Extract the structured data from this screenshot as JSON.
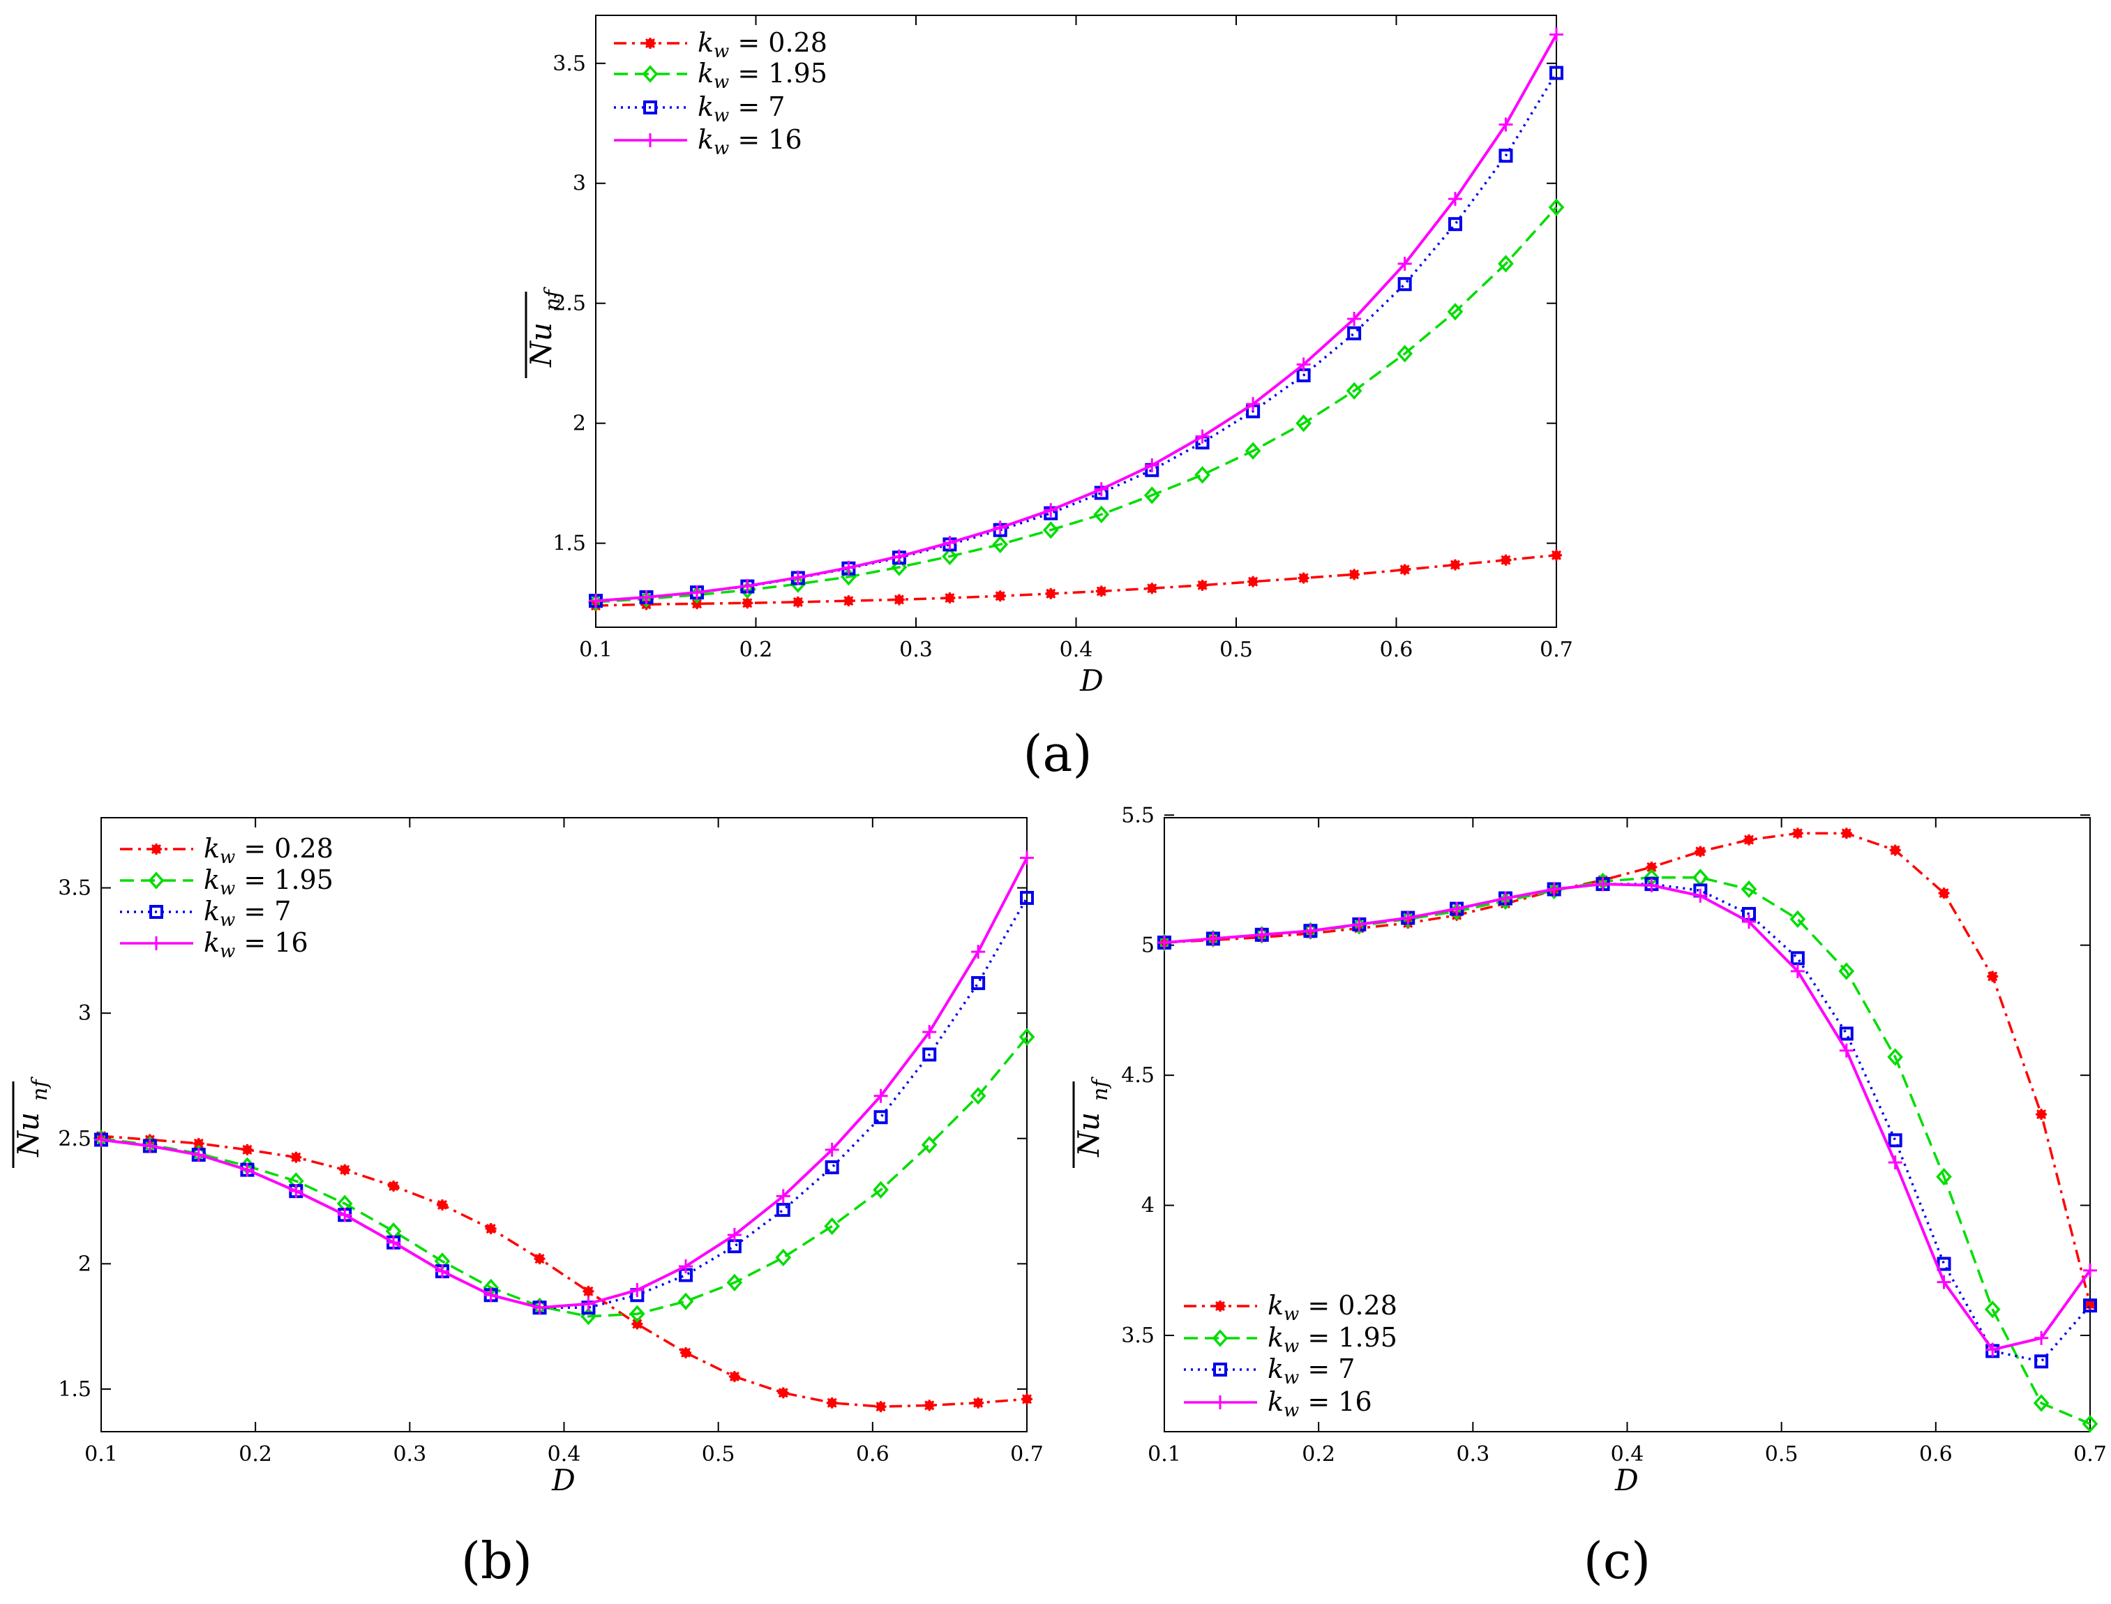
{
  "chart_data": [
    {
      "type": "line",
      "panel": "a",
      "caption": "(a)",
      "xlabel": "D",
      "ylabel": "Nu_nf",
      "xlim": [
        0.1,
        0.7
      ],
      "ylim": [
        1.15,
        3.7
      ],
      "xticks": [
        "0.1",
        "0.2",
        "0.3",
        "0.4",
        "0.5",
        "0.6",
        "0.7"
      ],
      "xtick_values": [
        0.1,
        0.2,
        0.3,
        0.4,
        0.5,
        0.6,
        0.7
      ],
      "yticks": [
        "1.5",
        "2",
        "2.5",
        "3",
        "3.5"
      ],
      "ytick_values": [
        1.5,
        2,
        2.5,
        3,
        3.5
      ],
      "legend_loc": "top-left",
      "x": [
        0.1,
        0.1316,
        0.1632,
        0.1947,
        0.2263,
        0.2579,
        0.2895,
        0.3211,
        0.3526,
        0.3842,
        0.4158,
        0.4474,
        0.4789,
        0.5105,
        0.5421,
        0.5737,
        0.6053,
        0.6368,
        0.6684,
        0.7
      ],
      "series": [
        {
          "name": "k_w = 0.28",
          "key": "red",
          "color": "#ff0000",
          "marker": "star",
          "dash": "18,8,4,8",
          "values": [
            1.24,
            1.245,
            1.248,
            1.251,
            1.255,
            1.26,
            1.265,
            1.272,
            1.28,
            1.29,
            1.3,
            1.312,
            1.325,
            1.34,
            1.355,
            1.37,
            1.39,
            1.41,
            1.43,
            1.45
          ]
        },
        {
          "name": "k_w = 1.95",
          "key": "green",
          "color": "#00dd00",
          "marker": "diamond",
          "dash": "20,10",
          "values": [
            1.255,
            1.268,
            1.285,
            1.305,
            1.33,
            1.36,
            1.4,
            1.445,
            1.495,
            1.555,
            1.62,
            1.7,
            1.785,
            1.885,
            2.0,
            2.135,
            2.29,
            2.465,
            2.665,
            2.9
          ]
        },
        {
          "name": "k_w = 7",
          "key": "blue",
          "color": "#0000ee",
          "marker": "square",
          "dash": "3,7",
          "values": [
            1.26,
            1.275,
            1.295,
            1.32,
            1.355,
            1.395,
            1.44,
            1.495,
            1.555,
            1.625,
            1.71,
            1.805,
            1.92,
            2.05,
            2.2,
            2.375,
            2.58,
            2.83,
            3.115,
            3.46
          ]
        },
        {
          "name": "k_w = 16",
          "key": "magenta",
          "color": "#ff00ff",
          "marker": "plus",
          "dash": "",
          "values": [
            1.26,
            1.275,
            1.295,
            1.322,
            1.357,
            1.398,
            1.445,
            1.502,
            1.565,
            1.638,
            1.725,
            1.825,
            1.945,
            2.08,
            2.245,
            2.435,
            2.665,
            2.935,
            3.245,
            3.62
          ]
        }
      ]
    },
    {
      "type": "line",
      "panel": "b",
      "caption": "(b)",
      "xlabel": "D",
      "ylabel": "Nu_nf",
      "xlim": [
        0.1,
        0.7
      ],
      "ylim": [
        1.33,
        3.78
      ],
      "xticks": [
        "0.1",
        "0.2",
        "0.3",
        "0.4",
        "0.5",
        "0.6",
        "0.7"
      ],
      "xtick_values": [
        0.1,
        0.2,
        0.3,
        0.4,
        0.5,
        0.6,
        0.7
      ],
      "yticks": [
        "1.5",
        "2",
        "2.5",
        "3",
        "3.5"
      ],
      "ytick_values": [
        1.5,
        2,
        2.5,
        3,
        3.5
      ],
      "legend_loc": "top-left",
      "x": [
        0.1,
        0.1316,
        0.1632,
        0.1947,
        0.2263,
        0.2579,
        0.2895,
        0.3211,
        0.3526,
        0.3842,
        0.4158,
        0.4474,
        0.4789,
        0.5105,
        0.5421,
        0.5737,
        0.6053,
        0.6368,
        0.6684,
        0.7
      ],
      "series": [
        {
          "name": "k_w = 0.28",
          "key": "red",
          "color": "#ff0000",
          "marker": "star",
          "dash": "18,8,4,8",
          "values": [
            2.51,
            2.495,
            2.48,
            2.455,
            2.425,
            2.375,
            2.31,
            2.235,
            2.14,
            2.02,
            1.89,
            1.76,
            1.645,
            1.55,
            1.485,
            1.445,
            1.43,
            1.435,
            1.445,
            1.46
          ]
        },
        {
          "name": "k_w = 1.95",
          "key": "green",
          "color": "#00dd00",
          "marker": "diamond",
          "dash": "20,10",
          "values": [
            2.5,
            2.475,
            2.44,
            2.39,
            2.33,
            2.24,
            2.13,
            2.01,
            1.905,
            1.83,
            1.79,
            1.8,
            1.85,
            1.925,
            2.025,
            2.15,
            2.295,
            2.475,
            2.67,
            2.905
          ]
        },
        {
          "name": "k_w = 7",
          "key": "blue",
          "color": "#0000ee",
          "marker": "square",
          "dash": "3,7",
          "values": [
            2.495,
            2.47,
            2.435,
            2.375,
            2.29,
            2.195,
            2.085,
            1.97,
            1.875,
            1.825,
            1.825,
            1.875,
            1.955,
            2.07,
            2.215,
            2.385,
            2.585,
            2.835,
            3.12,
            3.46
          ]
        },
        {
          "name": "k_w = 16",
          "key": "magenta",
          "color": "#ff00ff",
          "marker": "plus",
          "dash": "",
          "values": [
            2.495,
            2.47,
            2.435,
            2.375,
            2.29,
            2.195,
            2.085,
            1.97,
            1.875,
            1.825,
            1.84,
            1.895,
            1.99,
            2.115,
            2.27,
            2.455,
            2.67,
            2.925,
            3.245,
            3.62
          ]
        }
      ]
    },
    {
      "type": "line",
      "panel": "c",
      "caption": "(c)",
      "xlabel": "D",
      "ylabel": "Nu_nf",
      "xlim": [
        0.1,
        0.7
      ],
      "ylim": [
        3.13,
        5.49
      ],
      "xticks": [
        "0.1",
        "0.2",
        "0.3",
        "0.4",
        "0.5",
        "0.6",
        "0.7"
      ],
      "xtick_values": [
        0.1,
        0.2,
        0.3,
        0.4,
        0.5,
        0.6,
        0.7
      ],
      "yticks": [
        "3.5",
        "4",
        "4.5",
        "5",
        "5.5"
      ],
      "ytick_values": [
        3.5,
        4,
        4.5,
        5,
        5.5
      ],
      "legend_loc": "bottom-left",
      "x": [
        0.1,
        0.1316,
        0.1632,
        0.1947,
        0.2263,
        0.2579,
        0.2895,
        0.3211,
        0.3526,
        0.3842,
        0.4158,
        0.4474,
        0.4789,
        0.5105,
        0.5421,
        0.5737,
        0.6053,
        0.6368,
        0.6684,
        0.7
      ],
      "series": [
        {
          "name": "k_w = 0.28",
          "key": "red",
          "color": "#ff0000",
          "marker": "star",
          "dash": "18,8,4,8",
          "values": [
            5.01,
            5.02,
            5.03,
            5.045,
            5.065,
            5.085,
            5.115,
            5.16,
            5.21,
            5.25,
            5.3,
            5.36,
            5.405,
            5.43,
            5.43,
            5.365,
            5.2,
            4.88,
            4.35,
            3.62
          ]
        },
        {
          "name": "k_w = 1.95",
          "key": "green",
          "color": "#00dd00",
          "marker": "diamond",
          "dash": "20,10",
          "values": [
            5.01,
            5.025,
            5.04,
            5.055,
            5.075,
            5.1,
            5.13,
            5.17,
            5.21,
            5.245,
            5.26,
            5.26,
            5.215,
            5.1,
            4.9,
            4.57,
            4.11,
            3.6,
            3.24,
            3.16
          ]
        },
        {
          "name": "k_w = 7",
          "key": "blue",
          "color": "#0000ee",
          "marker": "square",
          "dash": "3,7",
          "values": [
            5.01,
            5.025,
            5.04,
            5.055,
            5.08,
            5.105,
            5.14,
            5.18,
            5.215,
            5.235,
            5.235,
            5.21,
            5.12,
            4.95,
            4.66,
            4.25,
            3.775,
            3.44,
            3.4,
            3.615
          ]
        },
        {
          "name": "k_w = 16",
          "key": "magenta",
          "color": "#ff00ff",
          "marker": "plus",
          "dash": "",
          "values": [
            5.01,
            5.025,
            5.04,
            5.055,
            5.08,
            5.105,
            5.14,
            5.18,
            5.215,
            5.235,
            5.23,
            5.19,
            5.09,
            4.9,
            4.595,
            4.165,
            3.705,
            3.445,
            3.49,
            3.75
          ]
        }
      ]
    }
  ]
}
